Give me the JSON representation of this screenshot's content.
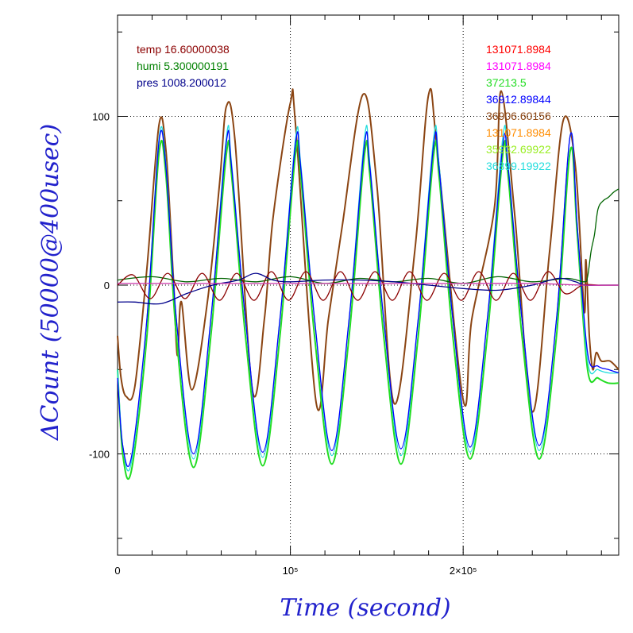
{
  "chart_data": {
    "type": "line",
    "title": "",
    "xlabel": "Time (second)",
    "ylabel": "ΔCount (50000@400usec)",
    "xlim": [
      0,
      290000
    ],
    "ylim": [
      -160,
      160
    ],
    "x_ticks": [
      {
        "value": 0,
        "label": "0"
      },
      {
        "value": 100000,
        "label": "10⁵"
      },
      {
        "value": 200000,
        "label": "2×10⁵"
      }
    ],
    "y_ticks": [
      {
        "value": 100,
        "label": "100"
      },
      {
        "value": 0,
        "label": "0"
      },
      {
        "value": -100,
        "label": "-100"
      }
    ],
    "grid": "dotted at labeled major ticks",
    "legend_left": [
      {
        "text": "temp 16.60000038",
        "color": "#8b0000"
      },
      {
        "text": "humi 5.300000191",
        "color": "#008000"
      },
      {
        "text": "pres 1008.200012",
        "color": "#00008b"
      }
    ],
    "legend_right": [
      {
        "text": "131071.8984",
        "color": "#ff0000"
      },
      {
        "text": "131071.8984",
        "color": "#ff00ff"
      },
      {
        "text": "37213.5",
        "color": "#22dd22"
      },
      {
        "text": "36912.89844",
        "color": "#0000ff"
      },
      {
        "text": "36906.60156",
        "color": "#8b4513"
      },
      {
        "text": "131071.8984",
        "color": "#ff8c00"
      },
      {
        "text": "35932.69922",
        "color": "#99ee22"
      },
      {
        "text": "36899.19922",
        "color": "#22dddd"
      }
    ],
    "series": [
      {
        "color": "#8b4513",
        "x": [
          0,
          2000,
          5000,
          10000,
          17000,
          24000,
          28000,
          32000,
          33000,
          34000,
          35000,
          37000,
          43000,
          52000,
          59000,
          63000,
          68000,
          78000,
          85000,
          90000,
          100000,
          103000,
          115000,
          122000,
          130000,
          142000,
          150000,
          160000,
          172000,
          180000,
          185000,
          200000,
          205000,
          218000,
          222000,
          230000,
          240000,
          250000,
          258000,
          265000,
          270000,
          271000,
          273000,
          275000,
          277000,
          280000,
          285000,
          290000
        ],
        "y": [
          -30,
          -55,
          -66,
          -60,
          10,
          95,
          80,
          10,
          -10,
          -35,
          -40,
          -10,
          -62,
          -10,
          60,
          106,
          85,
          -62,
          -20,
          40,
          108,
          95,
          -70,
          -20,
          35,
          113,
          60,
          -70,
          20,
          113,
          80,
          -68,
          -20,
          45,
          115,
          40,
          -75,
          20,
          98,
          70,
          -15,
          15,
          -30,
          -50,
          -40,
          -45,
          -45,
          -50
        ]
      },
      {
        "color": "#22dd22",
        "x": [
          0,
          3000,
          8000,
          17000,
          24000,
          28000,
          34000,
          44000,
          54000,
          63000,
          66000,
          74000,
          84000,
          94000,
          103000,
          106000,
          114000,
          124000,
          134000,
          143000,
          146000,
          154000,
          164000,
          174000,
          183000,
          186000,
          194000,
          204000,
          214000,
          223000,
          226000,
          234000,
          244000,
          254000,
          262000,
          266000,
          272000,
          278000,
          284000,
          290000
        ],
        "y": [
          -50,
          -100,
          -110,
          -30,
          78,
          65,
          -30,
          -108,
          -30,
          78,
          65,
          -30,
          -107,
          -30,
          78,
          65,
          -30,
          -106,
          -30,
          78,
          65,
          -30,
          -106,
          -30,
          78,
          65,
          -30,
          -103,
          -30,
          78,
          65,
          -30,
          -103,
          -30,
          80,
          30,
          -50,
          -55,
          -58,
          -58
        ]
      },
      {
        "color": "#22dddd",
        "x": [
          0,
          3000,
          8000,
          17000,
          24000,
          28000,
          34000,
          44000,
          54000,
          63000,
          66000,
          74000,
          84000,
          94000,
          103000,
          106000,
          114000,
          124000,
          134000,
          143000,
          146000,
          154000,
          164000,
          174000,
          183000,
          186000,
          194000,
          204000,
          214000,
          223000,
          226000,
          234000,
          244000,
          254000,
          262000,
          266000,
          272000,
          278000,
          284000,
          290000
        ],
        "y": [
          -50,
          -95,
          -105,
          -20,
          87,
          72,
          -20,
          -103,
          -20,
          88,
          72,
          -20,
          -102,
          -20,
          87,
          72,
          -20,
          -101,
          -20,
          88,
          72,
          -20,
          -101,
          -20,
          88,
          72,
          -20,
          -99,
          -20,
          88,
          72,
          -20,
          -98,
          -20,
          89,
          35,
          -45,
          -50,
          -52,
          -52
        ]
      },
      {
        "color": "#0000ff",
        "x": [
          0,
          3000,
          8000,
          17000,
          24000,
          28000,
          34000,
          44000,
          54000,
          63000,
          66000,
          74000,
          84000,
          94000,
          103000,
          106000,
          114000,
          124000,
          134000,
          143000,
          146000,
          154000,
          164000,
          174000,
          183000,
          186000,
          194000,
          204000,
          214000,
          223000,
          226000,
          234000,
          244000,
          254000,
          262000,
          266000,
          272000,
          278000,
          284000,
          290000
        ],
        "y": [
          -55,
          -95,
          -102,
          -20,
          85,
          70,
          -20,
          -100,
          -20,
          85,
          70,
          -20,
          -99,
          -20,
          84,
          70,
          -20,
          -98,
          -20,
          84,
          70,
          -20,
          -97,
          -20,
          84,
          70,
          -20,
          -96,
          -20,
          83,
          70,
          -20,
          -95,
          -20,
          89,
          35,
          -40,
          -48,
          -50,
          -52
        ]
      },
      {
        "color": "#006400",
        "x": [
          0,
          20000,
          40000,
          60000,
          80000,
          100000,
          120000,
          140000,
          160000,
          180000,
          200000,
          220000,
          240000,
          260000,
          270000,
          272000,
          274000,
          276000,
          278000,
          281000,
          284000,
          287000,
          290000
        ],
        "y": [
          3,
          5,
          2,
          4,
          2,
          5,
          1,
          4,
          2,
          4,
          1,
          5,
          2,
          4,
          2,
          5,
          20,
          30,
          45,
          50,
          52,
          55,
          57
        ]
      },
      {
        "color": "#8b0000",
        "x": [
          0,
          9000,
          19000,
          29000,
          39000,
          49000,
          59000,
          69000,
          79000,
          89000,
          99000,
          109000,
          119000,
          129000,
          139000,
          149000,
          159000,
          169000,
          179000,
          189000,
          199000,
          209000,
          219000,
          229000,
          239000,
          249000,
          259000,
          269000,
          279000,
          290000
        ],
        "y": [
          0,
          6,
          -8,
          7,
          -8,
          7,
          -9,
          7,
          -9,
          8,
          -9,
          8,
          -9,
          8,
          -9,
          8,
          -9,
          8,
          -9,
          7,
          -9,
          8,
          -9,
          7,
          -9,
          8,
          -5,
          0,
          0,
          0
        ]
      },
      {
        "color": "#00008b",
        "x": [
          0,
          10000,
          25000,
          40000,
          55000,
          70000,
          80000,
          90000,
          100000,
          120000,
          140000,
          160000,
          180000,
          200000,
          220000,
          240000,
          255000,
          265000,
          270000,
          280000,
          290000
        ],
        "y": [
          -10,
          -10,
          -11,
          -5,
          0,
          3,
          7,
          3,
          2,
          3,
          3,
          2,
          0,
          -2,
          -3,
          0,
          4,
          2,
          0,
          0,
          0
        ]
      },
      {
        "color": "#cc33aa",
        "x": [
          0,
          30000,
          60000,
          90000,
          120000,
          150000,
          180000,
          210000,
          240000,
          270000,
          290000
        ],
        "y": [
          1,
          1,
          1,
          1,
          1,
          1,
          1,
          1,
          1,
          0,
          0
        ]
      }
    ]
  }
}
